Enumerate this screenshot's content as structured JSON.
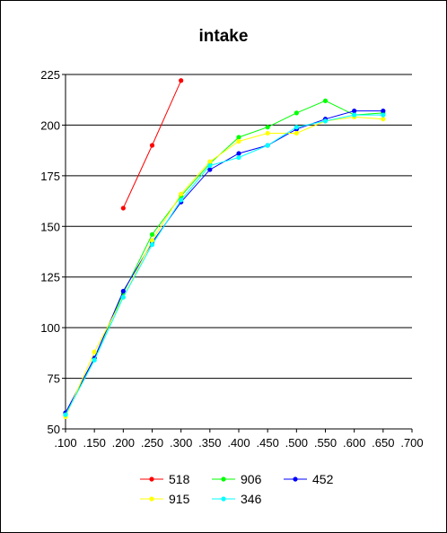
{
  "chart_data": {
    "type": "line",
    "title": "intake",
    "xlabel": "",
    "ylabel": "",
    "xlim": [
      0.1,
      0.7
    ],
    "ylim": [
      50,
      225
    ],
    "xticks": [
      0.1,
      0.15,
      0.2,
      0.25,
      0.3,
      0.35,
      0.4,
      0.45,
      0.5,
      0.55,
      0.6,
      0.65,
      0.7
    ],
    "xtick_labels": [
      ".100",
      ".150",
      ".200",
      ".250",
      ".300",
      ".350",
      ".400",
      ".450",
      ".500",
      ".550",
      ".600",
      ".650",
      ".700"
    ],
    "yticks": [
      50,
      75,
      100,
      125,
      150,
      175,
      200,
      225
    ],
    "ytick_labels": [
      "50",
      "75",
      "100",
      "125",
      "150",
      "175",
      "200",
      "225"
    ],
    "grid": "horizontal",
    "legend_position": "bottom",
    "series": [
      {
        "name": "518",
        "color": "#ff0000",
        "x": [
          0.2,
          0.25,
          0.3
        ],
        "y": [
          159,
          190,
          222
        ]
      },
      {
        "name": "906",
        "color": "#00ff00",
        "x": [
          0.1,
          0.15,
          0.2,
          0.25,
          0.3,
          0.35,
          0.4,
          0.45,
          0.5,
          0.55,
          0.6,
          0.65
        ],
        "y": [
          57,
          85,
          117,
          146,
          165,
          181,
          194,
          199,
          206,
          212,
          205,
          206
        ]
      },
      {
        "name": "452",
        "color": "#0000ff",
        "x": [
          0.1,
          0.15,
          0.2,
          0.25,
          0.3,
          0.35,
          0.4,
          0.45,
          0.5,
          0.55,
          0.6,
          0.65
        ],
        "y": [
          58,
          85,
          118,
          142,
          162,
          178,
          186,
          190,
          198,
          203,
          207,
          207
        ]
      },
      {
        "name": "915",
        "color": "#ffff00",
        "x": [
          0.1,
          0.15,
          0.2,
          0.25,
          0.3,
          0.35,
          0.4,
          0.45,
          0.5,
          0.55,
          0.6,
          0.65
        ],
        "y": [
          56,
          88,
          115,
          143,
          166,
          182,
          192,
          196,
          196,
          202,
          204,
          203
        ]
      },
      {
        "name": "346",
        "color": "#00ffff",
        "x": [
          0.1,
          0.15,
          0.2,
          0.25,
          0.3,
          0.35,
          0.4,
          0.45,
          0.5,
          0.55,
          0.6,
          0.65
        ],
        "y": [
          57,
          84,
          115,
          141,
          163,
          180,
          184,
          190,
          199,
          202,
          205,
          205
        ]
      }
    ],
    "legend_order": [
      "518",
      "906",
      "452",
      "915",
      "346"
    ]
  }
}
